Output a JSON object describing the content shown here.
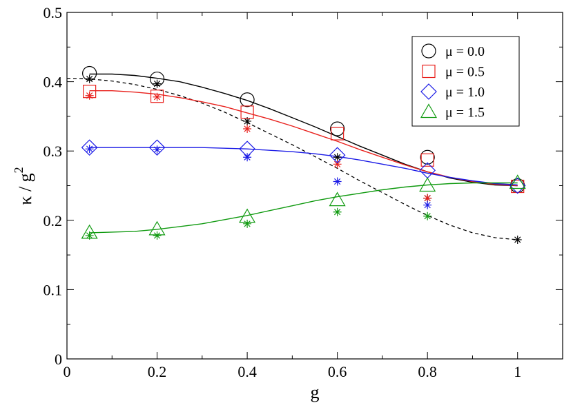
{
  "chart_data": {
    "type": "line",
    "xlabel": "g",
    "ylabel": "κ / g",
    "ylabel_sup": "2",
    "xlim": [
      0,
      1.1
    ],
    "ylim": [
      0,
      0.5
    ],
    "xticks": [
      0,
      0.2,
      0.4,
      0.6,
      0.8,
      1
    ],
    "xtick_labels": [
      "0",
      "0.2",
      "0.4",
      "0.6",
      "0.8",
      "1"
    ],
    "yticks": [
      0,
      0.1,
      0.2,
      0.3,
      0.4,
      0.5
    ],
    "ytick_labels": [
      "0",
      "0.1",
      "0.2",
      "0.3",
      "0.4",
      "0.5"
    ],
    "legend_position": "top-right",
    "series": [
      {
        "name": "μ = 0.0",
        "color": "#000000",
        "marker": "circle",
        "x": [
          0.05,
          0.2,
          0.4,
          0.6,
          0.8,
          1.0
        ],
        "y": [
          0.412,
          0.404,
          0.374,
          0.332,
          0.291,
          0.25
        ],
        "stars": [
          0.404,
          0.397,
          0.343,
          0.291,
          0.232,
          0.172
        ],
        "fit": [
          [
            0.05,
            0.411
          ],
          [
            0.1,
            0.411
          ],
          [
            0.15,
            0.409
          ],
          [
            0.2,
            0.405
          ],
          [
            0.25,
            0.4
          ],
          [
            0.3,
            0.392
          ],
          [
            0.35,
            0.383
          ],
          [
            0.4,
            0.373
          ],
          [
            0.45,
            0.361
          ],
          [
            0.5,
            0.348
          ],
          [
            0.55,
            0.335
          ],
          [
            0.6,
            0.321
          ],
          [
            0.65,
            0.307
          ],
          [
            0.7,
            0.294
          ],
          [
            0.75,
            0.281
          ],
          [
            0.8,
            0.27
          ],
          [
            0.85,
            0.261
          ],
          [
            0.9,
            0.255
          ],
          [
            0.95,
            0.251
          ],
          [
            1.0,
            0.25
          ]
        ]
      },
      {
        "name": "μ = 0.5",
        "color": "#e8201c",
        "marker": "square",
        "x": [
          0.05,
          0.2,
          0.4,
          0.6,
          0.8,
          1.0
        ],
        "y": [
          0.386,
          0.379,
          0.356,
          0.325,
          0.287,
          0.249
        ],
        "stars": [
          0.38,
          0.378,
          0.332,
          0.281,
          0.232
        ],
        "fit": [
          [
            0.05,
            0.387
          ],
          [
            0.1,
            0.387
          ],
          [
            0.15,
            0.385
          ],
          [
            0.2,
            0.382
          ],
          [
            0.25,
            0.377
          ],
          [
            0.3,
            0.371
          ],
          [
            0.35,
            0.364
          ],
          [
            0.4,
            0.355
          ],
          [
            0.45,
            0.346
          ],
          [
            0.5,
            0.336
          ],
          [
            0.55,
            0.325
          ],
          [
            0.6,
            0.314
          ],
          [
            0.65,
            0.302
          ],
          [
            0.7,
            0.291
          ],
          [
            0.75,
            0.28
          ],
          [
            0.8,
            0.27
          ],
          [
            0.85,
            0.262
          ],
          [
            0.9,
            0.256
          ],
          [
            0.95,
            0.252
          ],
          [
            1.0,
            0.25
          ]
        ]
      },
      {
        "name": "μ = 1.0",
        "color": "#1a1ae6",
        "marker": "diamond",
        "x": [
          0.05,
          0.2,
          0.4,
          0.6,
          0.8,
          1.0
        ],
        "y": [
          0.305,
          0.305,
          0.303,
          0.294,
          0.272,
          0.25
        ],
        "stars": [
          0.303,
          0.302,
          0.291,
          0.256,
          0.222
        ],
        "fit": [
          [
            0.05,
            0.305
          ],
          [
            0.1,
            0.305
          ],
          [
            0.15,
            0.305
          ],
          [
            0.2,
            0.305
          ],
          [
            0.25,
            0.305
          ],
          [
            0.3,
            0.305
          ],
          [
            0.35,
            0.304
          ],
          [
            0.4,
            0.303
          ],
          [
            0.45,
            0.301
          ],
          [
            0.5,
            0.299
          ],
          [
            0.55,
            0.296
          ],
          [
            0.6,
            0.292
          ],
          [
            0.65,
            0.287
          ],
          [
            0.7,
            0.281
          ],
          [
            0.75,
            0.275
          ],
          [
            0.8,
            0.268
          ],
          [
            0.85,
            0.262
          ],
          [
            0.9,
            0.257
          ],
          [
            0.95,
            0.253
          ],
          [
            1.0,
            0.251
          ]
        ]
      },
      {
        "name": "μ = 1.5",
        "color": "#109a10",
        "marker": "triangle",
        "x": [
          0.05,
          0.2,
          0.4,
          0.6,
          0.8,
          1.0
        ],
        "y": [
          0.182,
          0.187,
          0.205,
          0.229,
          0.25,
          0.254
        ],
        "stars": [
          0.178,
          0.178,
          0.195,
          0.212,
          0.206
        ],
        "fit": [
          [
            0.05,
            0.182
          ],
          [
            0.1,
            0.183
          ],
          [
            0.15,
            0.184
          ],
          [
            0.2,
            0.187
          ],
          [
            0.25,
            0.191
          ],
          [
            0.3,
            0.195
          ],
          [
            0.35,
            0.201
          ],
          [
            0.4,
            0.207
          ],
          [
            0.45,
            0.214
          ],
          [
            0.5,
            0.221
          ],
          [
            0.55,
            0.228
          ],
          [
            0.6,
            0.234
          ],
          [
            0.65,
            0.239
          ],
          [
            0.7,
            0.244
          ],
          [
            0.75,
            0.248
          ],
          [
            0.8,
            0.251
          ],
          [
            0.85,
            0.253
          ],
          [
            0.9,
            0.254
          ],
          [
            0.95,
            0.254
          ],
          [
            1.0,
            0.254
          ]
        ]
      }
    ],
    "dashed_curve": {
      "color": "#000000",
      "points": [
        [
          0,
          0.405
        ],
        [
          0.05,
          0.404
        ],
        [
          0.1,
          0.401
        ],
        [
          0.15,
          0.396
        ],
        [
          0.2,
          0.389
        ],
        [
          0.25,
          0.38
        ],
        [
          0.3,
          0.369
        ],
        [
          0.35,
          0.356
        ],
        [
          0.4,
          0.341
        ],
        [
          0.45,
          0.325
        ],
        [
          0.5,
          0.309
        ],
        [
          0.55,
          0.292
        ],
        [
          0.6,
          0.275
        ],
        [
          0.65,
          0.257
        ],
        [
          0.7,
          0.24
        ],
        [
          0.75,
          0.223
        ],
        [
          0.8,
          0.207
        ],
        [
          0.85,
          0.193
        ],
        [
          0.9,
          0.182
        ],
        [
          0.95,
          0.175
        ],
        [
          1.0,
          0.172
        ]
      ]
    }
  }
}
